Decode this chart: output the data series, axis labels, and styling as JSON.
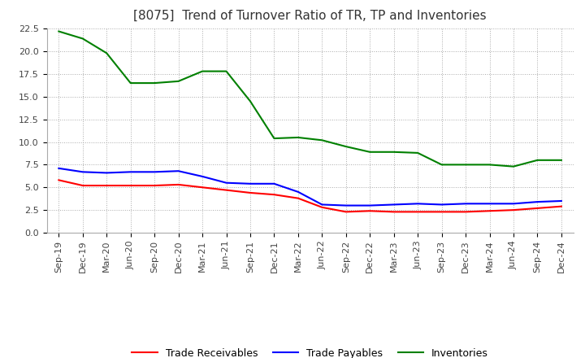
{
  "title": "[8075]  Trend of Turnover Ratio of TR, TP and Inventories",
  "ylim": [
    0,
    22.5
  ],
  "yticks": [
    0.0,
    2.5,
    5.0,
    7.5,
    10.0,
    12.5,
    15.0,
    17.5,
    20.0,
    22.5
  ],
  "x_labels": [
    "Sep-19",
    "Dec-19",
    "Mar-20",
    "Jun-20",
    "Sep-20",
    "Dec-20",
    "Mar-21",
    "Jun-21",
    "Sep-21",
    "Dec-21",
    "Mar-22",
    "Jun-22",
    "Sep-22",
    "Dec-22",
    "Mar-23",
    "Jun-23",
    "Sep-23",
    "Dec-23",
    "Mar-24",
    "Jun-24",
    "Sep-24",
    "Dec-24"
  ],
  "trade_receivables": [
    5.8,
    5.2,
    5.2,
    5.2,
    5.2,
    5.3,
    5.0,
    4.7,
    4.4,
    4.2,
    3.8,
    2.8,
    2.3,
    2.4,
    2.3,
    2.3,
    2.3,
    2.3,
    2.4,
    2.5,
    2.7,
    2.9
  ],
  "trade_payables": [
    7.1,
    6.7,
    6.6,
    6.7,
    6.7,
    6.8,
    6.2,
    5.5,
    5.4,
    5.4,
    4.5,
    3.1,
    3.0,
    3.0,
    3.1,
    3.2,
    3.1,
    3.2,
    3.2,
    3.2,
    3.4,
    3.5
  ],
  "inventories": [
    22.2,
    21.4,
    19.8,
    16.5,
    16.5,
    16.7,
    17.8,
    17.8,
    14.5,
    10.4,
    10.5,
    10.2,
    9.5,
    8.9,
    8.9,
    8.8,
    7.5,
    7.5,
    7.5,
    7.3,
    8.0,
    8.0
  ],
  "tr_color": "#FF0000",
  "tp_color": "#0000FF",
  "inv_color": "#008000",
  "background_color": "#FFFFFF",
  "grid_color": "#AAAAAA",
  "title_fontsize": 11,
  "tick_fontsize": 8,
  "legend_fontsize": 9,
  "line_width": 1.5
}
